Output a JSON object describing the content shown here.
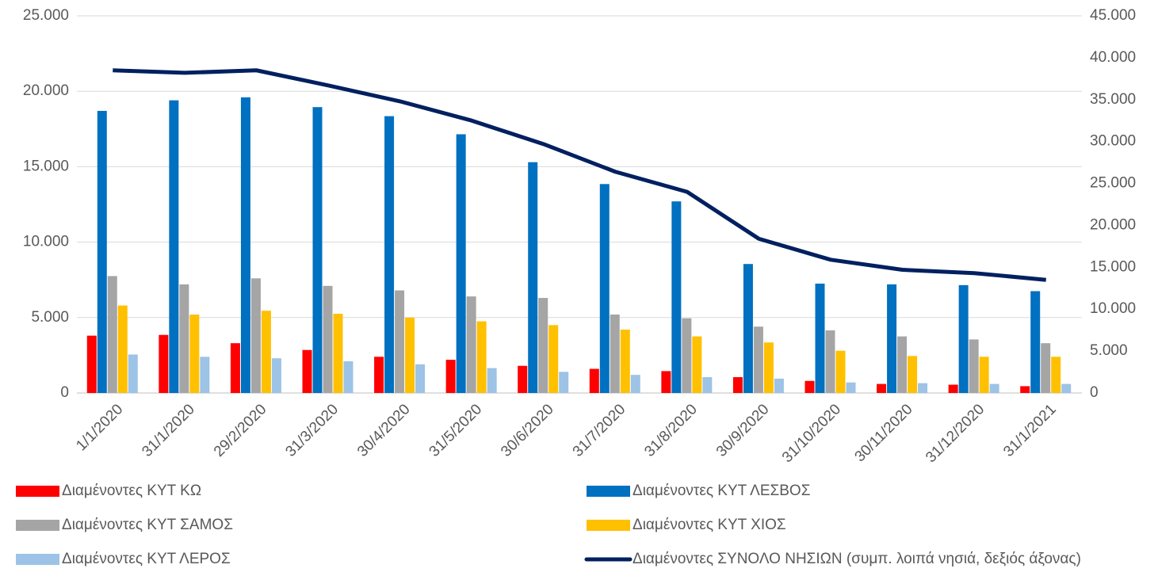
{
  "chart_data": {
    "type": "bar",
    "categories": [
      "1/1/2020",
      "31/1/2020",
      "29/2/2020",
      "31/3/2020",
      "30/4/2020",
      "31/5/2020",
      "30/6/2020",
      "31/7/2020",
      "31/8/2020",
      "30/9/2020",
      "31/10/2020",
      "30/11/2020",
      "31/12/2020",
      "31/1/2021"
    ],
    "series": [
      {
        "name": "Διαμένοντες ΚΥΤ ΚΩ",
        "color": "#ff0000",
        "values": [
          3800,
          3850,
          3300,
          2850,
          2400,
          2200,
          1800,
          1600,
          1450,
          1050,
          800,
          600,
          550,
          450
        ]
      },
      {
        "name": "Διαμένοντες ΚΥΤ ΛΕΣΒΟΣ",
        "color": "#0070c0",
        "values": [
          18700,
          19400,
          19600,
          18950,
          18350,
          17150,
          15300,
          13850,
          12700,
          8550,
          7250,
          7200,
          7150,
          6750
        ]
      },
      {
        "name": "Διαμένοντες ΚΥΤ ΣΑΜΟΣ",
        "color": "#a5a5a5",
        "values": [
          7750,
          7200,
          7600,
          7100,
          6800,
          6400,
          6300,
          5200,
          4950,
          4400,
          4150,
          3750,
          3550,
          3300
        ]
      },
      {
        "name": "Διαμένοντες ΚΥΤ ΧΙΟΣ",
        "color": "#ffc000",
        "values": [
          5800,
          5200,
          5450,
          5250,
          5000,
          4750,
          4500,
          4200,
          3750,
          3350,
          2800,
          2450,
          2400,
          2400
        ]
      },
      {
        "name": "Διαμένοντες ΚΥΤ ΛΕΡΟΣ",
        "color": "#9dc3e6",
        "values": [
          2550,
          2400,
          2300,
          2100,
          1900,
          1650,
          1400,
          1200,
          1050,
          950,
          700,
          650,
          600,
          600
        ]
      },
      {
        "name": "Διαμένοντες ΣΥΝΟΛΟ ΝΗΣΙΩΝ (συμπ. λοιπά νησιά, δεξιός άξονας)",
        "color": "#002060",
        "type": "line",
        "axis": "y2",
        "values": [
          38500,
          38200,
          38500,
          36700,
          34800,
          32500,
          29700,
          26400,
          24000,
          18400,
          15900,
          14700,
          14300,
          13500
        ]
      }
    ],
    "ylim": [
      0,
      25000
    ],
    "yticks": [
      0,
      {
        "value": 5000,
        "label": "5.000"
      },
      {
        "value": 10000,
        "label": "10.000"
      },
      {
        "value": 15000,
        "label": "15.000"
      },
      {
        "value": 20000,
        "label": "20.000"
      },
      {
        "value": 25000,
        "label": "25.000"
      }
    ],
    "y2lim": [
      0,
      45000
    ],
    "y2ticks": [
      0,
      {
        "value": 5000,
        "label": "5.000"
      },
      {
        "value": 10000,
        "label": "10.000"
      },
      {
        "value": 15000,
        "label": "15.000"
      },
      {
        "value": 20000,
        "label": "20.000"
      },
      {
        "value": 25000,
        "label": "25.000"
      },
      {
        "value": 30000,
        "label": "30.000"
      },
      {
        "value": 35000,
        "label": "35.000"
      },
      {
        "value": 40000,
        "label": "40.000"
      },
      {
        "value": 45000,
        "label": "45.000"
      }
    ],
    "grid": true,
    "legend": "bottom"
  }
}
